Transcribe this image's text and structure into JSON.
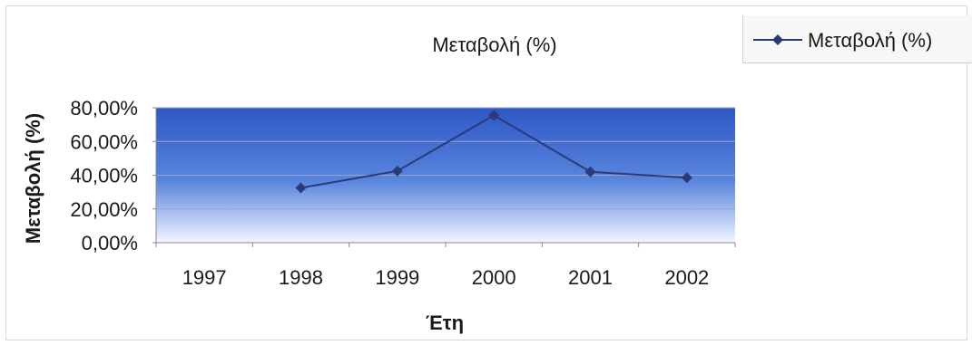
{
  "chart_data": {
    "type": "line",
    "title": "Μεταβολή (%)",
    "xlabel": "Έτη",
    "ylabel": "Μεταβολή (%)",
    "categories": [
      "1997",
      "1998",
      "1999",
      "2000",
      "2001",
      "2002"
    ],
    "series": [
      {
        "name": "Μεταβολή (%)",
        "values": [
          null,
          32.5,
          42.5,
          75.5,
          42.0,
          38.5
        ],
        "color": "#2b3a78"
      }
    ],
    "ylim": [
      0,
      80
    ],
    "yticks": [
      0,
      20,
      40,
      60,
      80
    ],
    "ytick_labels": [
      "0,00%",
      "20,00%",
      "40,00%",
      "60,00%",
      "80,00%"
    ],
    "grid": true,
    "legend_position": "top-right",
    "plot_gradient": {
      "top": "#2e57c4",
      "bottom": "#f3f6ff"
    }
  }
}
